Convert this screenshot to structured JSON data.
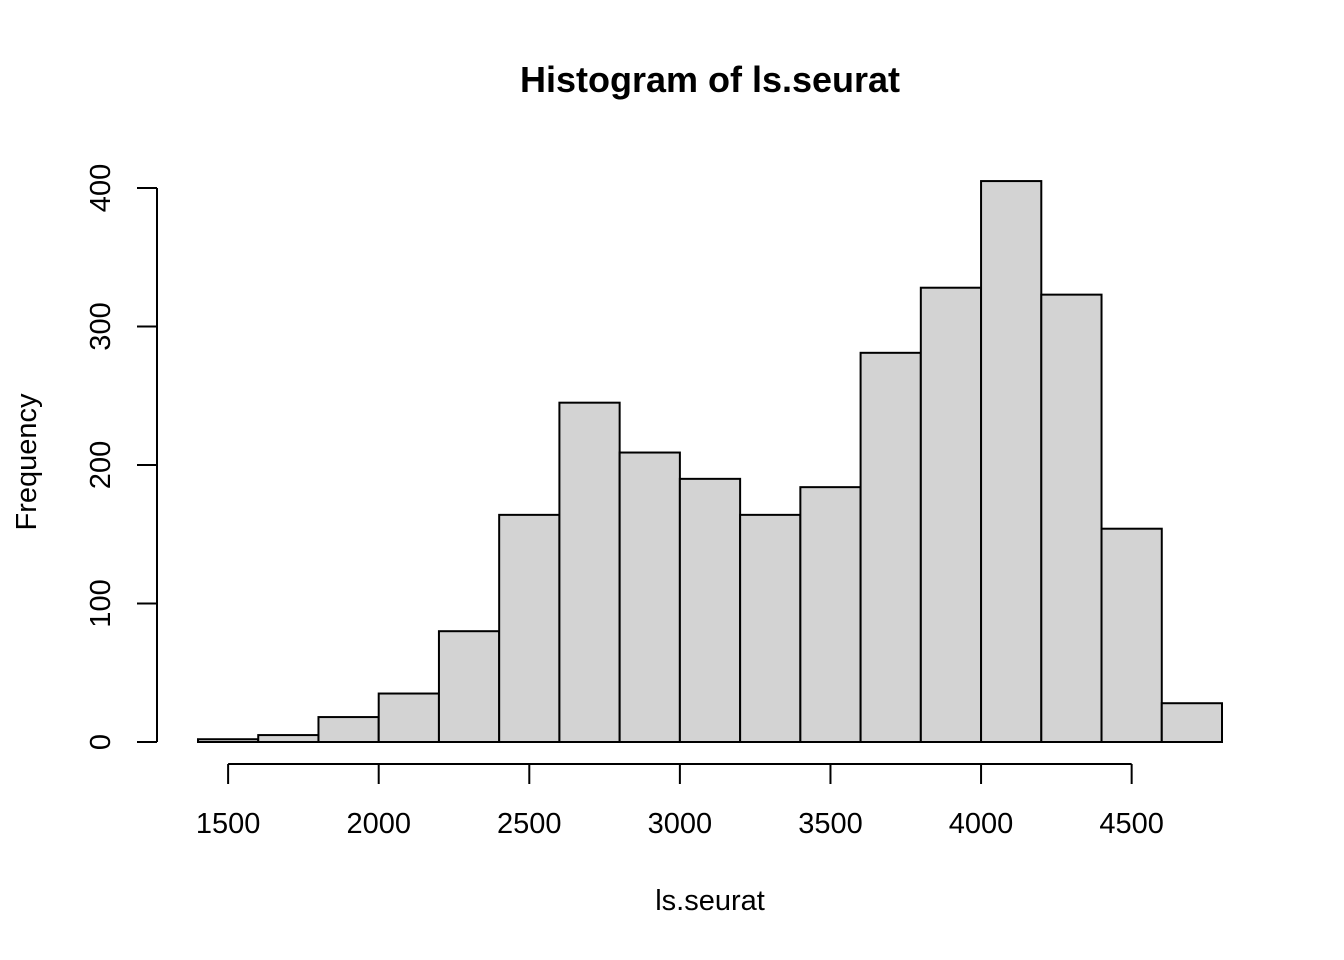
{
  "chart_data": {
    "type": "bar",
    "title": "Histogram of ls.seurat",
    "xlabel": "ls.seurat",
    "ylabel": "Frequency",
    "bin_edges": [
      1400,
      1600,
      1800,
      2000,
      2200,
      2400,
      2600,
      2800,
      3000,
      3200,
      3400,
      3600,
      3800,
      4000,
      4200,
      4400,
      4600,
      4800
    ],
    "values": [
      2,
      5,
      18,
      35,
      80,
      164,
      245,
      209,
      190,
      164,
      184,
      281,
      328,
      405,
      323,
      154,
      28
    ],
    "xlim": [
      1400,
      4800
    ],
    "ylim": [
      0,
      400
    ],
    "x_ticks": [
      1500,
      2000,
      2500,
      3000,
      3500,
      4000,
      4500
    ],
    "x_tick_labels": [
      "1500",
      "2000",
      "2500",
      "3000",
      "3500",
      "4000",
      "4500"
    ],
    "y_ticks": [
      0,
      100,
      200,
      300,
      400
    ],
    "y_tick_labels": [
      "0",
      "100",
      "200",
      "300",
      "400"
    ],
    "colors": {
      "bar_fill": "#d3d3d3",
      "bar_stroke": "#000000"
    },
    "grid": false
  }
}
